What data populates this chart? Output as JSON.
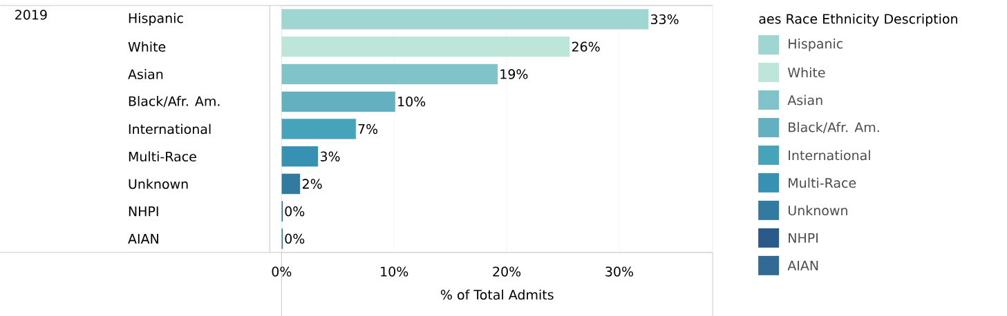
{
  "chart_data": {
    "type": "bar",
    "orientation": "horizontal",
    "categories": [
      "Hispanic",
      "White",
      "Asian",
      "Black/Afr. Am.",
      "International",
      "Multi-Race",
      "Unknown",
      "NHPI",
      "AIAN"
    ],
    "values": [
      32.6,
      25.6,
      19.2,
      10.1,
      6.6,
      3.25,
      1.66,
      0.1,
      0.1
    ],
    "value_labels": [
      "33%",
      "26%",
      "19%",
      "10%",
      "7%",
      "3%",
      "2%",
      "0%",
      "0%"
    ],
    "colors": [
      "#9fd6d2",
      "#bde5da",
      "#80c3c9",
      "#63b0c0",
      "#46a3ba",
      "#3791b3",
      "#337aa0",
      "#2b5a8a",
      "#326a96"
    ],
    "xlabel": "% of Total Admits",
    "legend_title": "aes Race Ethnicity Description",
    "annotations": [
      "2019"
    ],
    "xlim": [
      0,
      38.3
    ],
    "xticks": [
      {
        "value": 0,
        "label": "0%"
      },
      {
        "value": 10,
        "label": "10%"
      },
      {
        "value": 20,
        "label": "20%"
      },
      {
        "value": 30,
        "label": "30%"
      }
    ],
    "grid": "x"
  }
}
